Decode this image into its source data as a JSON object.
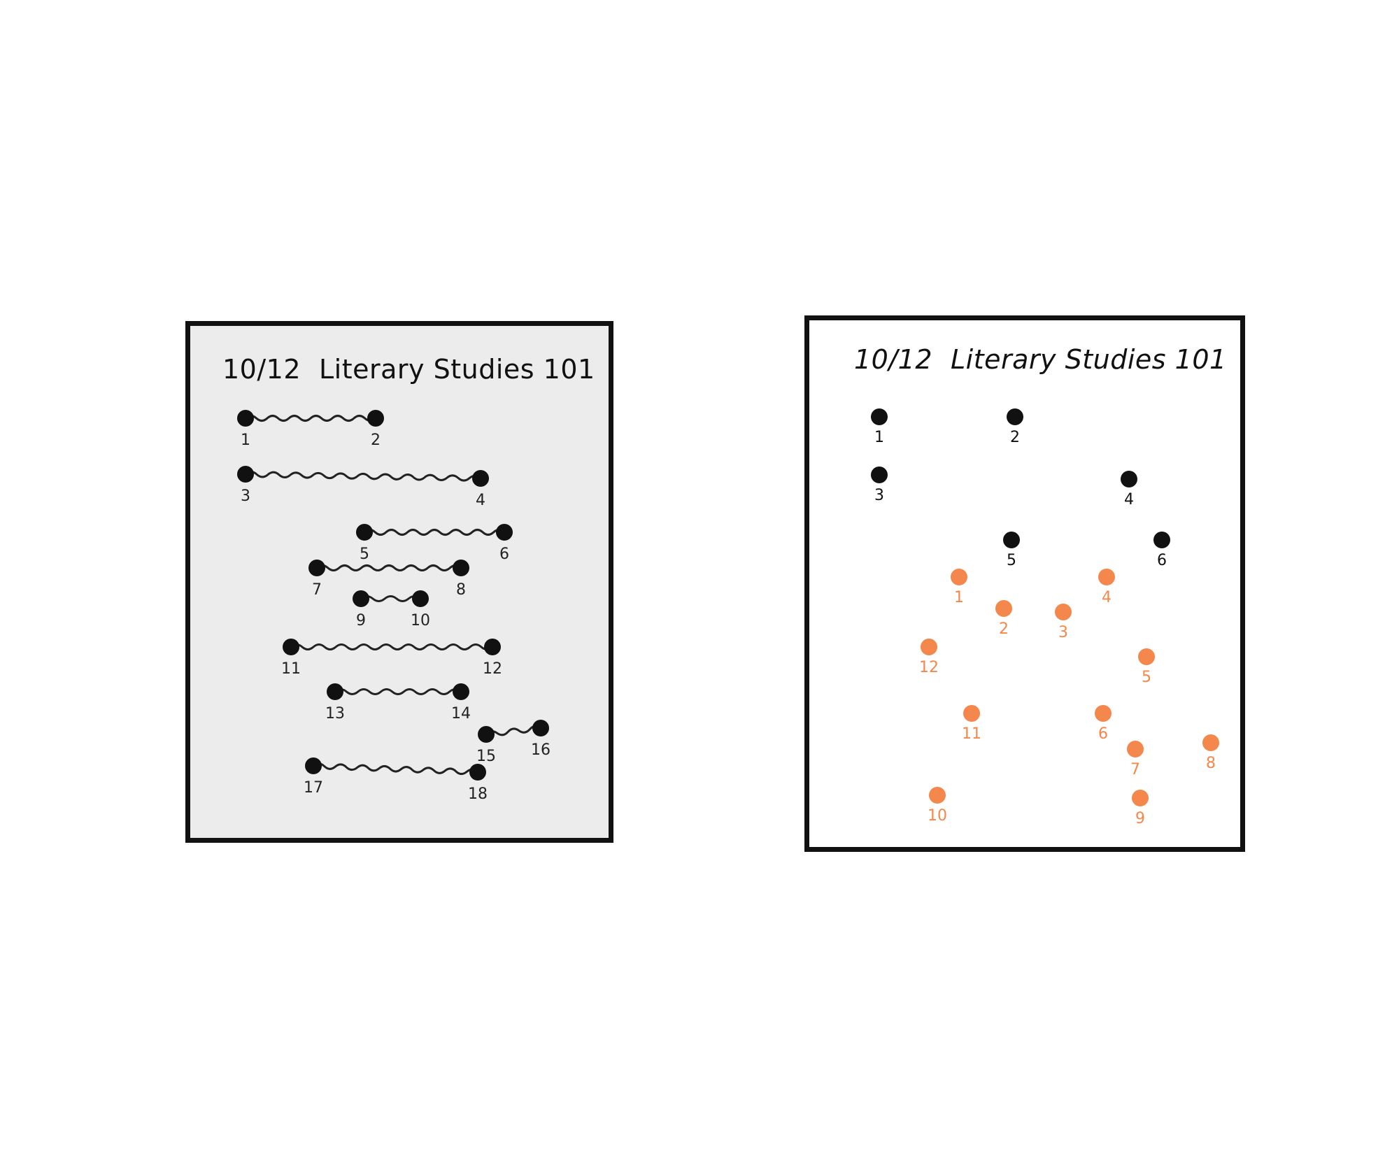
{
  "left_panel": {
    "date": "10/12",
    "course": "Literary Studies 101",
    "colors": {
      "dot": "#111111",
      "background": "#ececec"
    },
    "pairs": [
      {
        "a": "1",
        "b": "2"
      },
      {
        "a": "3",
        "b": "4"
      },
      {
        "a": "5",
        "b": "6"
      },
      {
        "a": "7",
        "b": "8"
      },
      {
        "a": "9",
        "b": "10"
      },
      {
        "a": "11",
        "b": "12"
      },
      {
        "a": "13",
        "b": "14"
      },
      {
        "a": "15",
        "b": "16"
      },
      {
        "a": "17",
        "b": "18"
      }
    ]
  },
  "right_panel": {
    "date": "10/12",
    "course": "Literary Studies 101",
    "colors": {
      "black_dot": "#111111",
      "orange_dot": "#f4874b",
      "background": "#ffffff"
    },
    "black_points": [
      "1",
      "2",
      "3",
      "4",
      "5",
      "6"
    ],
    "orange_points": [
      "1",
      "2",
      "3",
      "4",
      "5",
      "6",
      "7",
      "8",
      "9",
      "10",
      "11",
      "12"
    ]
  }
}
